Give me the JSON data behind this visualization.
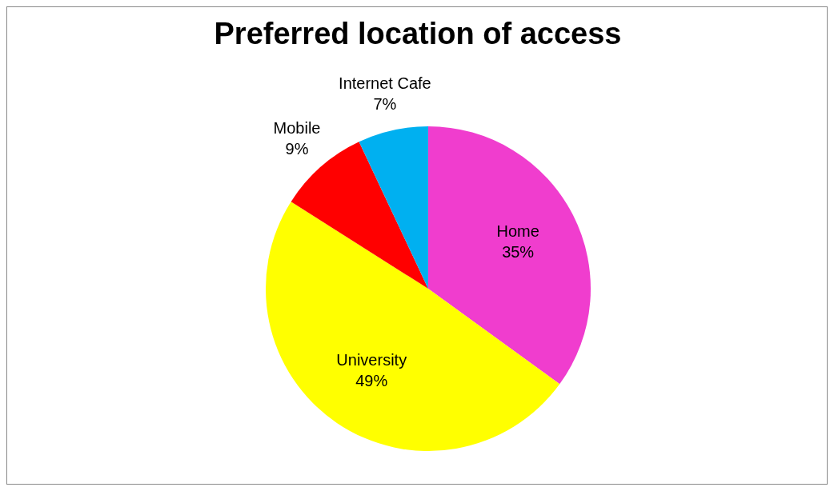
{
  "chart_data": {
    "type": "pie",
    "title": "Preferred location of access",
    "categories": [
      "Home",
      "University",
      "Mobile",
      "Internet Cafe"
    ],
    "values": [
      35,
      49,
      9,
      7
    ],
    "colors": [
      "#f03dce",
      "#ffff00",
      "#ff0000",
      "#00b0f0"
    ],
    "value_labels": [
      "35%",
      "49%",
      "9%",
      "7%"
    ],
    "legend": false
  }
}
